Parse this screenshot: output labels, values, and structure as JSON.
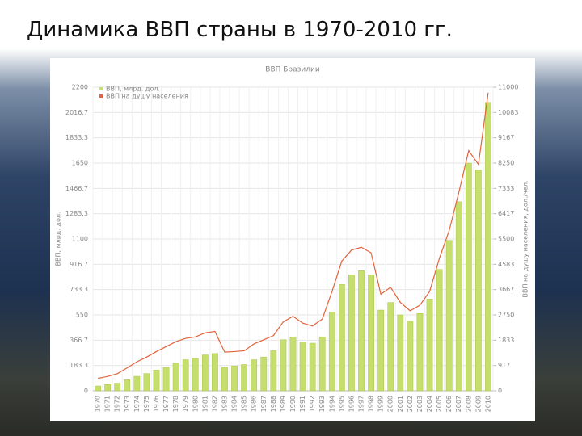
{
  "slide_title": "Динамика ВВП страны в 1970-2010 гг.",
  "chart_data": {
    "type": "bar",
    "title": "ВВП Бразилии",
    "ylabel": "ВВП, млрд. дол.",
    "y2label": "ВВП на душу населения, дол./чел.",
    "categories": [
      "1970",
      "1971",
      "1972",
      "1973",
      "1974",
      "1975",
      "1976",
      "1977",
      "1978",
      "1979",
      "1980",
      "1981",
      "1982",
      "1983",
      "1984",
      "1985",
      "1986",
      "1987",
      "1988",
      "1989",
      "1990",
      "1991",
      "1992",
      "1993",
      "1994",
      "1995",
      "1996",
      "1997",
      "1998",
      "1999",
      "2000",
      "2001",
      "2002",
      "2003",
      "2004",
      "2005",
      "2006",
      "2007",
      "2008",
      "2009",
      "2010"
    ],
    "series": [
      {
        "name": "ВВП, млрд. дол.",
        "type": "bar",
        "color": "#c6de6e",
        "values": [
          35,
          45,
          55,
          80,
          105,
          125,
          150,
          170,
          200,
          225,
          235,
          260,
          270,
          170,
          180,
          190,
          225,
          245,
          290,
          370,
          390,
          355,
          345,
          390,
          570,
          770,
          840,
          870,
          840,
          585,
          640,
          550,
          505,
          560,
          665,
          880,
          1090,
          1370,
          1650,
          1600,
          2090
        ]
      },
      {
        "name": "ВВП на душу населения",
        "type": "line",
        "axis": "y2",
        "color": "#e2633d",
        "values": [
          450,
          520,
          620,
          830,
          1050,
          1220,
          1420,
          1600,
          1780,
          1900,
          1950,
          2100,
          2150,
          1400,
          1420,
          1450,
          1700,
          1850,
          2000,
          2500,
          2700,
          2450,
          2350,
          2600,
          3600,
          4700,
          5100,
          5200,
          5000,
          3500,
          3750,
          3200,
          2900,
          3100,
          3600,
          4800,
          5800,
          7200,
          8700,
          8200,
          10800
        ]
      }
    ],
    "ylim": [
      0,
      2200
    ],
    "yticks": [
      0,
      183.3,
      366.7,
      550,
      733.3,
      916.7,
      1100,
      1283.3,
      1466.7,
      1650,
      1833.3,
      2016.7,
      2200
    ],
    "y2lim": [
      0,
      11000
    ],
    "y2ticks": [
      0,
      917,
      1833,
      2750,
      3667,
      4583,
      5500,
      6417,
      7333,
      8250,
      9167,
      10083,
      11000
    ],
    "grid": true,
    "legend": "upper left"
  }
}
